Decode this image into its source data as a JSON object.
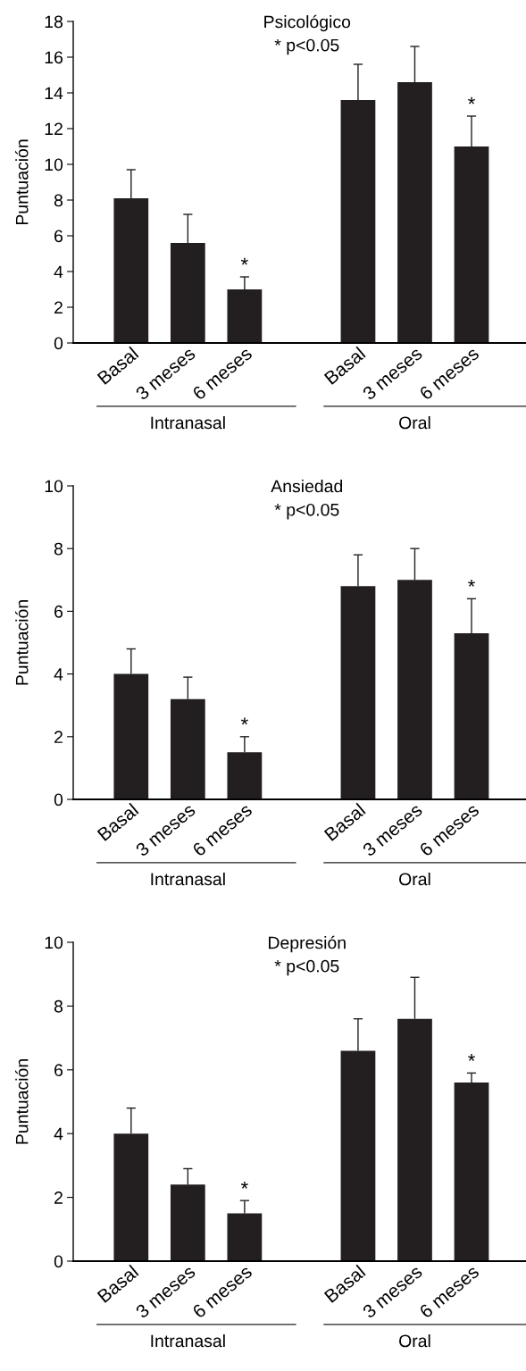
{
  "chart_data": [
    {
      "type": "bar",
      "title": "Psicológico",
      "subtitle": "* p<0.05",
      "ylabel": "Puntuación",
      "categories": [
        "Basal",
        "3 meses",
        "6 meses",
        "Basal",
        "3 meses",
        "6 meses"
      ],
      "values": [
        8.1,
        5.6,
        3.0,
        13.6,
        14.6,
        11.0
      ],
      "errors": [
        [
          8.1,
          9.7
        ],
        [
          5.6,
          7.2
        ],
        [
          3.0,
          3.7
        ],
        [
          13.6,
          15.6
        ],
        [
          14.6,
          16.6
        ],
        [
          11.0,
          12.7
        ]
      ],
      "value_labels": [
        null,
        null,
        "*",
        null,
        null,
        "*"
      ],
      "color": "#231f20",
      "ylim": [
        0,
        18
      ],
      "yticks": [
        0,
        2,
        4,
        6,
        8,
        10,
        12,
        14,
        16,
        18
      ],
      "annotations": [
        "Intranasal",
        "Oral"
      ]
    },
    {
      "type": "bar",
      "title": "Ansiedad",
      "subtitle": "* p<0.05",
      "ylabel": "Puntuación",
      "categories": [
        "Basal",
        "3 meses",
        "6 meses",
        "Basal",
        "3 meses",
        "6 meses"
      ],
      "values": [
        4.0,
        3.2,
        1.5,
        6.8,
        7.0,
        5.3
      ],
      "errors": [
        [
          4.0,
          4.8
        ],
        [
          3.2,
          3.9
        ],
        [
          1.5,
          2.0
        ],
        [
          6.8,
          7.8
        ],
        [
          7.0,
          8.0
        ],
        [
          5.3,
          6.4
        ]
      ],
      "value_labels": [
        null,
        null,
        "*",
        null,
        null,
        "*"
      ],
      "color": "#231f20",
      "ylim": [
        0,
        10
      ],
      "yticks": [
        0,
        2,
        4,
        6,
        8,
        10
      ],
      "annotations": [
        "Intranasal",
        "Oral"
      ]
    },
    {
      "type": "bar",
      "title": "Depresión",
      "subtitle": "* p<0.05",
      "ylabel": "Puntuación",
      "categories": [
        "Basal",
        "3 meses",
        "6 meses",
        "Basal",
        "3 meses",
        "6 meses"
      ],
      "values": [
        4.0,
        2.4,
        1.5,
        6.6,
        7.6,
        5.6
      ],
      "errors": [
        [
          4.0,
          4.8
        ],
        [
          2.4,
          2.9
        ],
        [
          1.5,
          1.9
        ],
        [
          6.6,
          7.6
        ],
        [
          7.6,
          8.9
        ],
        [
          5.6,
          5.9
        ]
      ],
      "value_labels": [
        null,
        null,
        "*",
        null,
        null,
        "*"
      ],
      "color": "#231f20",
      "ylim": [
        0,
        10
      ],
      "yticks": [
        0,
        2,
        4,
        6,
        8,
        10
      ],
      "annotations": [
        "Intranasal",
        "Oral"
      ]
    }
  ]
}
